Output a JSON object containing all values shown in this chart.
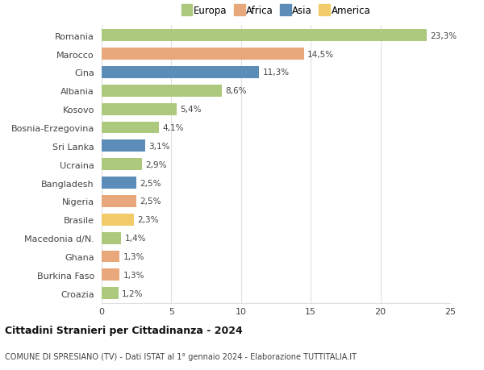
{
  "countries": [
    "Romania",
    "Marocco",
    "Cina",
    "Albania",
    "Kosovo",
    "Bosnia-Erzegovina",
    "Sri Lanka",
    "Ucraina",
    "Bangladesh",
    "Nigeria",
    "Brasile",
    "Macedonia d/N.",
    "Ghana",
    "Burkina Faso",
    "Croazia"
  ],
  "values": [
    23.3,
    14.5,
    11.3,
    8.6,
    5.4,
    4.1,
    3.1,
    2.9,
    2.5,
    2.5,
    2.3,
    1.4,
    1.3,
    1.3,
    1.2
  ],
  "labels": [
    "23,3%",
    "14,5%",
    "11,3%",
    "8,6%",
    "5,4%",
    "4,1%",
    "3,1%",
    "2,9%",
    "2,5%",
    "2,5%",
    "2,3%",
    "1,4%",
    "1,3%",
    "1,3%",
    "1,2%"
  ],
  "continents": [
    "Europa",
    "Africa",
    "Asia",
    "Europa",
    "Europa",
    "Europa",
    "Asia",
    "Europa",
    "Asia",
    "Africa",
    "America",
    "Europa",
    "Africa",
    "Africa",
    "Europa"
  ],
  "colors": {
    "Europa": "#adc97e",
    "Africa": "#e8a87c",
    "Asia": "#5b8db8",
    "America": "#f2cc6b"
  },
  "title": "Cittadini Stranieri per Cittadinanza - 2024",
  "subtitle": "COMUNE DI SPRESIANO (TV) - Dati ISTAT al 1° gennaio 2024 - Elaborazione TUTTITALIA.IT",
  "xlim": [
    0,
    25
  ],
  "xticks": [
    0,
    5,
    10,
    15,
    20,
    25
  ],
  "background_color": "#ffffff",
  "grid_color": "#e0e0e0"
}
